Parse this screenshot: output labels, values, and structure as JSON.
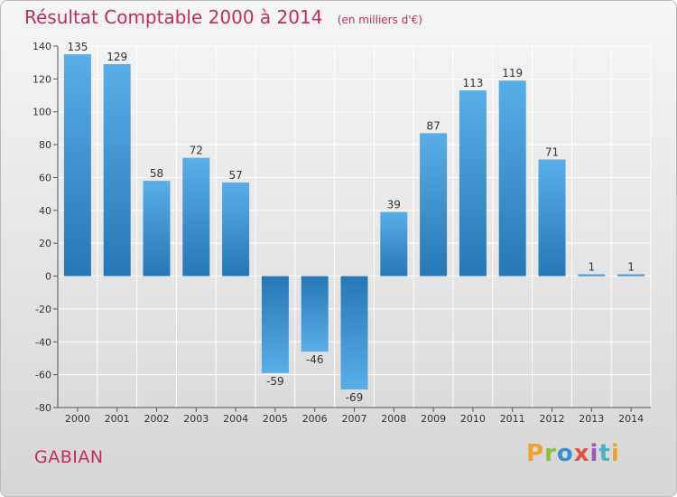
{
  "header": {
    "title": "Résultat Comptable 2000 à 2014",
    "unit": "(en milliers d'€)"
  },
  "city": "GABIAN",
  "logo": {
    "text": "Proxiti",
    "letters": [
      "P",
      "r",
      "o",
      "x",
      "i",
      "t",
      "i"
    ]
  },
  "colors": {
    "title": "#c12b62",
    "bar_top": "#5aaee8",
    "bar_bottom": "#2677b5",
    "grid": "#ffffff"
  },
  "chart_data": {
    "type": "bar",
    "title": "Résultat Comptable 2000 à 2014",
    "subtitle": "(en milliers d'€)",
    "categories": [
      "2000",
      "2001",
      "2002",
      "2003",
      "2004",
      "2005",
      "2006",
      "2007",
      "2008",
      "2009",
      "2010",
      "2011",
      "2012",
      "2013",
      "2014"
    ],
    "values": [
      135,
      129,
      58,
      72,
      57,
      -59,
      -46,
      -69,
      39,
      87,
      113,
      119,
      71,
      1,
      1
    ],
    "ylim": [
      -80,
      140
    ],
    "yticks": [
      -80,
      -60,
      -40,
      -20,
      0,
      20,
      40,
      60,
      80,
      100,
      120,
      140
    ],
    "grid": true,
    "xlabel": "",
    "ylabel": ""
  }
}
